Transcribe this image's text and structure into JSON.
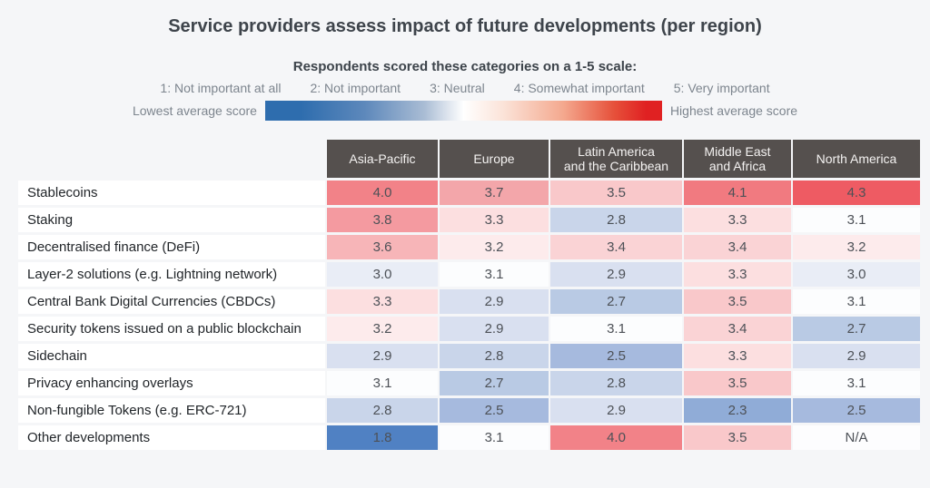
{
  "title": "Service providers assess impact of future developments (per region)",
  "legend": {
    "subtitle": "Respondents scored these categories on a 1-5 scale:",
    "scale_labels": [
      "1: Not important at all",
      "2: Not important",
      "3: Neutral",
      "4: Somewhat important",
      "5: Very important"
    ],
    "low_label": "Lowest average score",
    "high_label": "Highest average score",
    "gradient_stops": [
      "#2e6dae 0%",
      "#2e6dae 9%",
      "#5d88bb 25%",
      "#a9bcd4 40%",
      "#ffffff 50%",
      "#fbe3d8 60%",
      "#f4a98f 75%",
      "#e6503a 88%",
      "#e02122 96%",
      "#e02122 100%"
    ]
  },
  "chart_data": {
    "type": "heatmap",
    "title": "Service providers assess impact of future developments (per region)",
    "scale": {
      "min": 1,
      "max": 5,
      "midpoint_white": 3.1
    },
    "columns": [
      "Asia-Pacific",
      "Europe",
      "Latin America\nand the Caribbean",
      "Middle East\nand Africa",
      "North America"
    ],
    "rows": [
      {
        "label": "Stablecoins",
        "values": [
          "4.0",
          "3.7",
          "3.5",
          "4.1",
          "4.3"
        ]
      },
      {
        "label": "Staking",
        "values": [
          "3.8",
          "3.3",
          "2.8",
          "3.3",
          "3.1"
        ]
      },
      {
        "label": "Decentralised finance (DeFi)",
        "values": [
          "3.6",
          "3.2",
          "3.4",
          "3.4",
          "3.2"
        ]
      },
      {
        "label": "Layer-2 solutions (e.g. Lightning network)",
        "values": [
          "3.0",
          "3.1",
          "2.9",
          "3.3",
          "3.0"
        ]
      },
      {
        "label": "Central Bank Digital Currencies (CBDCs)",
        "values": [
          "3.3",
          "2.9",
          "2.7",
          "3.5",
          "3.1"
        ]
      },
      {
        "label": "Security tokens issued on a public blockchain",
        "values": [
          "3.2",
          "2.9",
          "3.1",
          "3.4",
          "2.7"
        ]
      },
      {
        "label": "Sidechain",
        "values": [
          "2.9",
          "2.8",
          "2.5",
          "3.3",
          "2.9"
        ]
      },
      {
        "label": "Privacy enhancing overlays",
        "values": [
          "3.1",
          "2.7",
          "2.8",
          "3.5",
          "3.1"
        ]
      },
      {
        "label": "Non-fungible Tokens (e.g. ERC-721)",
        "values": [
          "2.8",
          "2.5",
          "2.9",
          "2.3",
          "2.5"
        ]
      },
      {
        "label": "Other developments",
        "values": [
          "1.8",
          "3.1",
          "4.0",
          "3.5",
          "N/A"
        ]
      }
    ],
    "na_text": "N/A",
    "colors": {
      "header_bg": "#55504e",
      "header_text": "#f4f2f1",
      "row_label_bg": "#ffffff",
      "page_bg": "#f5f6f8",
      "value_colors": {
        "1.8": "#5081c3",
        "2.3": "#90acd7",
        "2.5": "#a6bade",
        "2.7": "#b9cae4",
        "2.8": "#c9d5ea",
        "2.9": "#d9e0f0",
        "3.0": "#e9edf6",
        "3.1": "#fcfdfe",
        "3.2": "#fdebec",
        "3.3": "#fcdfe0",
        "3.4": "#fad3d5",
        "3.5": "#f9c8ca",
        "3.6": "#f7b5b8",
        "3.7": "#f3a6aa",
        "3.8": "#f49aa0",
        "4.0": "#f28288",
        "4.1": "#f17a80",
        "4.3": "#ee5b63",
        "N/A": "#fdfdfe"
      }
    }
  }
}
